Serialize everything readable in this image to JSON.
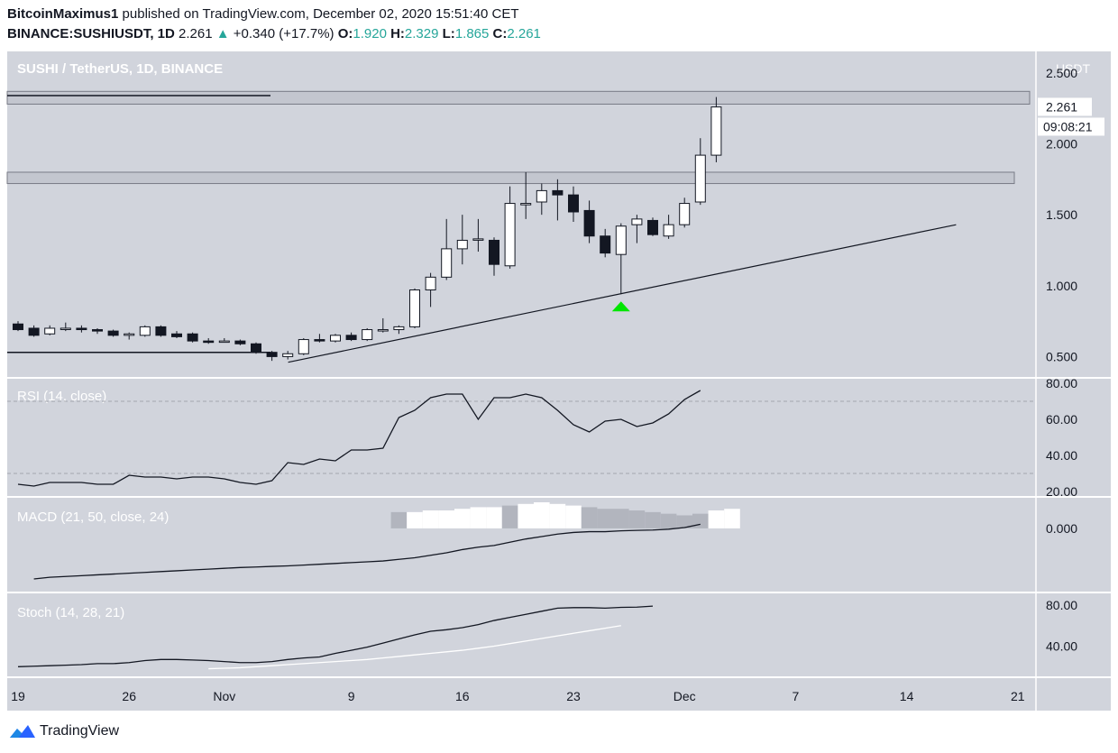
{
  "header": {
    "author": "BitcoinMaximus1",
    "published_text": "published on TradingView.com, December 02, 2020 15:51:40 CET",
    "symbol": "BINANCE:SUSHIUSDT, 1D",
    "last": "2.261",
    "change_arrow": "▲",
    "change": "+0.340 (+17.7%)",
    "o_label": "O:",
    "o_value": "1.920",
    "h_label": "H:",
    "h_value": "2.329",
    "l_label": "L:",
    "l_value": "1.865",
    "c_label": "C:",
    "c_value": "2.261"
  },
  "footer": {
    "brand": "TradingView",
    "logo_icon": "tradingview-logo-icon"
  },
  "colors": {
    "panel_bg": "#d1d4dc",
    "candle_up": "#ffffff",
    "candle_down": "#131722",
    "signal_arrow": "#00e600",
    "accent_up": "#26a69a"
  },
  "chart_data": [
    {
      "type": "candlestick",
      "title": "SUSHI / TetherUS, 1D, BINANCE",
      "currency_label": "USDT",
      "y_ticks": [
        "2.500",
        "2.000",
        "1.500",
        "1.000",
        "0.500"
      ],
      "ylim": [
        0.42,
        2.62
      ],
      "last_price_label": "2.261",
      "countdown_label": "09:08:21",
      "x_tick_labels": [
        {
          "day": 0,
          "label": "19"
        },
        {
          "day": 7,
          "label": "26"
        },
        {
          "day": 13,
          "label": "Nov"
        },
        {
          "day": 21,
          "label": "9"
        },
        {
          "day": 28,
          "label": "16"
        },
        {
          "day": 35,
          "label": "23"
        },
        {
          "day": 42,
          "label": "Dec"
        },
        {
          "day": 49,
          "label": "7"
        },
        {
          "day": 56,
          "label": "14"
        },
        {
          "day": 63,
          "label": "21"
        }
      ],
      "candles": [
        {
          "o": 0.73,
          "h": 0.75,
          "l": 0.68,
          "c": 0.69
        },
        {
          "o": 0.7,
          "h": 0.72,
          "l": 0.64,
          "c": 0.65
        },
        {
          "o": 0.66,
          "h": 0.72,
          "l": 0.65,
          "c": 0.7
        },
        {
          "o": 0.7,
          "h": 0.74,
          "l": 0.68,
          "c": 0.7
        },
        {
          "o": 0.7,
          "h": 0.72,
          "l": 0.67,
          "c": 0.69
        },
        {
          "o": 0.69,
          "h": 0.7,
          "l": 0.66,
          "c": 0.68
        },
        {
          "o": 0.68,
          "h": 0.69,
          "l": 0.64,
          "c": 0.65
        },
        {
          "o": 0.65,
          "h": 0.67,
          "l": 0.62,
          "c": 0.66
        },
        {
          "o": 0.65,
          "h": 0.72,
          "l": 0.64,
          "c": 0.71
        },
        {
          "o": 0.71,
          "h": 0.72,
          "l": 0.64,
          "c": 0.65
        },
        {
          "o": 0.66,
          "h": 0.68,
          "l": 0.63,
          "c": 0.64
        },
        {
          "o": 0.66,
          "h": 0.67,
          "l": 0.6,
          "c": 0.61
        },
        {
          "o": 0.61,
          "h": 0.63,
          "l": 0.59,
          "c": 0.6
        },
        {
          "o": 0.61,
          "h": 0.63,
          "l": 0.6,
          "c": 0.61
        },
        {
          "o": 0.61,
          "h": 0.62,
          "l": 0.58,
          "c": 0.59
        },
        {
          "o": 0.59,
          "h": 0.6,
          "l": 0.52,
          "c": 0.53
        },
        {
          "o": 0.53,
          "h": 0.54,
          "l": 0.47,
          "c": 0.5
        },
        {
          "o": 0.5,
          "h": 0.54,
          "l": 0.48,
          "c": 0.52
        },
        {
          "o": 0.52,
          "h": 0.63,
          "l": 0.51,
          "c": 0.62
        },
        {
          "o": 0.62,
          "h": 0.66,
          "l": 0.6,
          "c": 0.61
        },
        {
          "o": 0.61,
          "h": 0.66,
          "l": 0.6,
          "c": 0.65
        },
        {
          "o": 0.65,
          "h": 0.67,
          "l": 0.61,
          "c": 0.62
        },
        {
          "o": 0.62,
          "h": 0.7,
          "l": 0.61,
          "c": 0.69
        },
        {
          "o": 0.69,
          "h": 0.77,
          "l": 0.67,
          "c": 0.69
        },
        {
          "o": 0.69,
          "h": 0.72,
          "l": 0.66,
          "c": 0.71
        },
        {
          "o": 0.71,
          "h": 0.98,
          "l": 0.7,
          "c": 0.97
        },
        {
          "o": 0.97,
          "h": 1.09,
          "l": 0.85,
          "c": 1.06
        },
        {
          "o": 1.06,
          "h": 1.47,
          "l": 1.04,
          "c": 1.26
        },
        {
          "o": 1.26,
          "h": 1.5,
          "l": 1.15,
          "c": 1.32
        },
        {
          "o": 1.33,
          "h": 1.47,
          "l": 1.24,
          "c": 1.33
        },
        {
          "o": 1.32,
          "h": 1.34,
          "l": 1.07,
          "c": 1.15
        },
        {
          "o": 1.14,
          "h": 1.7,
          "l": 1.12,
          "c": 1.58
        },
        {
          "o": 1.57,
          "h": 1.8,
          "l": 1.47,
          "c": 1.58
        },
        {
          "o": 1.59,
          "h": 1.72,
          "l": 1.5,
          "c": 1.67
        },
        {
          "o": 1.67,
          "h": 1.75,
          "l": 1.46,
          "c": 1.64
        },
        {
          "o": 1.64,
          "h": 1.7,
          "l": 1.45,
          "c": 1.52
        },
        {
          "o": 1.53,
          "h": 1.6,
          "l": 1.3,
          "c": 1.35
        },
        {
          "o": 1.35,
          "h": 1.4,
          "l": 1.2,
          "c": 1.23
        },
        {
          "o": 1.22,
          "h": 1.44,
          "l": 0.94,
          "c": 1.42
        },
        {
          "o": 1.43,
          "h": 1.5,
          "l": 1.3,
          "c": 1.47
        },
        {
          "o": 1.46,
          "h": 1.48,
          "l": 1.35,
          "c": 1.36
        },
        {
          "o": 1.35,
          "h": 1.5,
          "l": 1.33,
          "c": 1.43
        },
        {
          "o": 1.43,
          "h": 1.62,
          "l": 1.41,
          "c": 1.58
        },
        {
          "o": 1.59,
          "h": 2.04,
          "l": 1.57,
          "c": 1.92
        },
        {
          "o": 1.92,
          "h": 2.33,
          "l": 1.87,
          "c": 2.26
        }
      ],
      "resistance_zones": [
        {
          "from": 2.28,
          "to": 2.37
        },
        {
          "from": 1.72,
          "to": 1.8
        }
      ],
      "trendline": {
        "start_day": 16,
        "start_price": 0.46,
        "end_day": 59,
        "end_price": 1.43
      },
      "support_line": {
        "start_day": 0,
        "end_day": 16,
        "price": 0.53
      },
      "top_line": {
        "start_day": 0,
        "end_day": 16,
        "price": 2.34
      },
      "signal_arrow_day": 38
    },
    {
      "type": "line",
      "title": "RSI (14, close)",
      "y_ticks": [
        "80.00",
        "60.00",
        "40.00",
        "20.00"
      ],
      "ylim": [
        20,
        80
      ],
      "bands": [
        70,
        30
      ],
      "values": [
        24,
        23,
        25,
        25,
        25,
        24,
        24,
        29,
        28,
        28,
        27,
        28,
        28,
        27,
        25,
        24,
        26,
        36,
        35,
        38,
        37,
        43,
        43,
        44,
        61,
        65,
        72,
        74,
        74,
        60,
        72,
        72,
        74,
        72,
        65,
        57,
        53,
        59,
        60,
        56,
        58,
        63,
        71,
        76
      ]
    },
    {
      "type": "histogram_line",
      "title": "MACD (21, 50, close, 24)",
      "y_ticks": [
        "0.000"
      ],
      "ylim": [
        -0.36,
        0.16
      ],
      "hist_start_day": 24,
      "histogram": [
        0.1,
        0.1,
        0.11,
        0.11,
        0.12,
        0.13,
        0.13,
        0.14,
        0.15,
        0.16,
        0.15,
        0.14,
        0.13,
        0.12,
        0.12,
        0.11,
        0.1,
        0.09,
        0.08,
        0.09,
        0.11,
        0.12
      ],
      "hist_shade": [
        "gray",
        "white",
        "white",
        "white",
        "white",
        "white",
        "white",
        "gray",
        "white",
        "white",
        "white",
        "white",
        "gray",
        "gray",
        "gray",
        "gray",
        "gray",
        "gray",
        "gray",
        "gray",
        "white",
        "white"
      ],
      "macd_start_day": 1,
      "macd": [
        -0.31,
        -0.3,
        -0.295,
        -0.29,
        -0.285,
        -0.28,
        -0.275,
        -0.27,
        -0.265,
        -0.26,
        -0.255,
        -0.25,
        -0.245,
        -0.24,
        -0.237,
        -0.233,
        -0.23,
        -0.225,
        -0.22,
        -0.215,
        -0.21,
        -0.205,
        -0.2,
        -0.19,
        -0.18,
        -0.165,
        -0.15,
        -0.13,
        -0.115,
        -0.105,
        -0.085,
        -0.065,
        -0.05,
        -0.035,
        -0.025,
        -0.02,
        -0.02,
        -0.015,
        -0.012,
        -0.01,
        -0.005,
        0.005,
        0.025
      ]
    },
    {
      "type": "line",
      "title": "Stoch (14, 28, 21)",
      "y_ticks": [
        "80.00",
        "40.00"
      ],
      "ylim": [
        15,
        87
      ],
      "k_start_day": 0,
      "k": [
        20,
        20.5,
        21,
        21.5,
        22,
        23,
        23,
        24,
        26,
        27,
        27,
        26.5,
        26,
        25,
        24,
        24,
        25,
        27,
        28.5,
        29.5,
        33,
        36,
        39,
        43,
        47,
        51,
        54.5,
        56,
        58,
        61,
        65,
        68,
        71,
        74,
        77,
        77.5,
        77.5,
        77,
        77.8,
        78,
        79
      ],
      "d_start_day": 12,
      "d": [
        18,
        18.5,
        19,
        20,
        21,
        22,
        23,
        24,
        25,
        26,
        27,
        28.5,
        30,
        31.5,
        33,
        34.5,
        36,
        38,
        40,
        42.5,
        45,
        47.5,
        50,
        52.5,
        55,
        57.5,
        60
      ]
    }
  ]
}
